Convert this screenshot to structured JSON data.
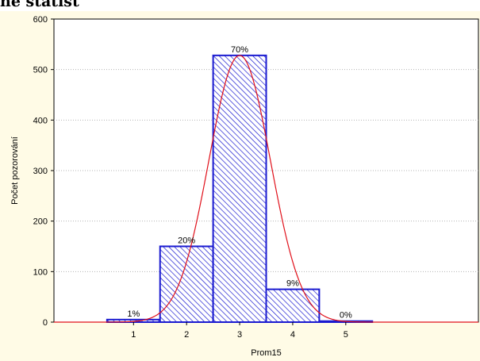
{
  "header": {
    "title_fragment": "ne statist"
  },
  "chart_data": {
    "type": "bar",
    "categories": [
      "1",
      "2",
      "3",
      "4",
      "5"
    ],
    "values": [
      5,
      150,
      528,
      65,
      2
    ],
    "percent_labels": [
      "1%",
      "20%",
      "70%",
      "9%",
      "0%"
    ],
    "xlabel": "Prom15",
    "ylabel": "Počet pozorování",
    "ylim": [
      0,
      600
    ],
    "xlim": [
      -0.5,
      7.5
    ],
    "yticks": [
      0,
      100,
      200,
      300,
      400,
      500,
      600
    ],
    "grid": true,
    "legend": "none",
    "fit_curve": {
      "type": "normal",
      "mean": 3.0,
      "sd": 0.58,
      "peak": 528
    },
    "colors": {
      "bar_stroke": "#1a1ad0",
      "hatch": "#1a1ad0",
      "curve": "#e0101a",
      "background": "#fffbe6",
      "grid": "#b4b4b4"
    }
  }
}
